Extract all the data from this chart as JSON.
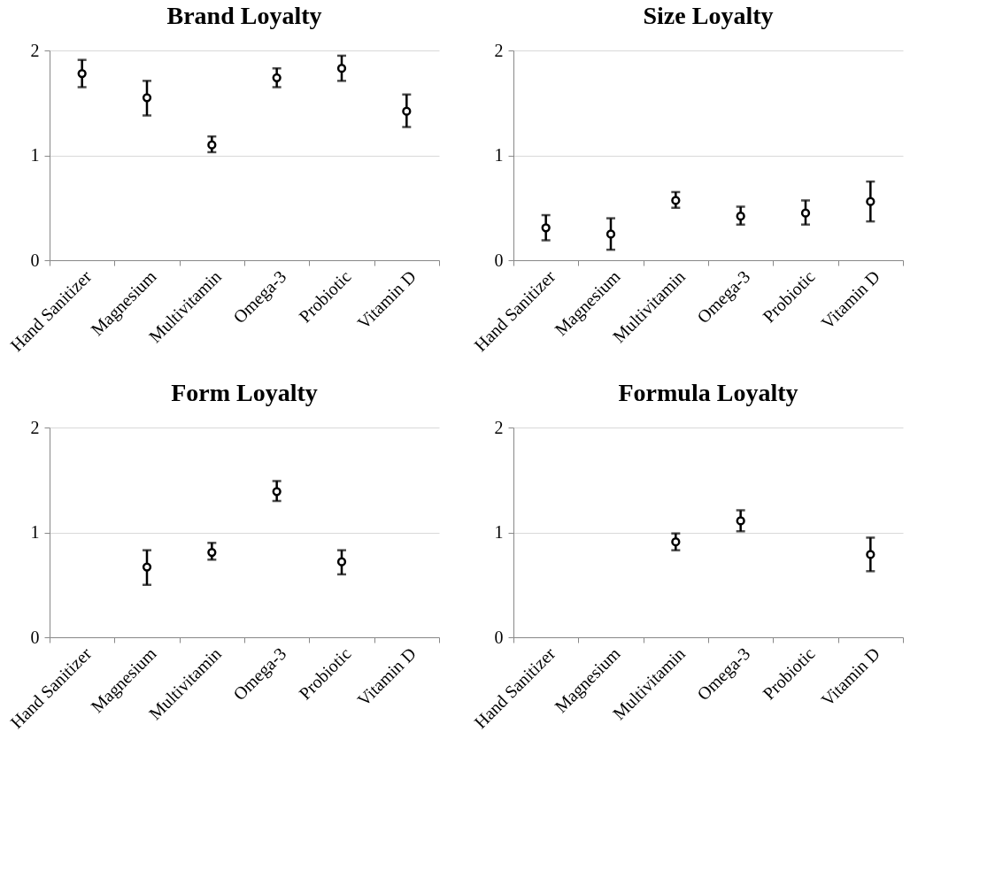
{
  "chart_data": [
    {
      "type": "scatter",
      "title": "Brand Loyalty",
      "categories": [
        "Hand Sanitizer",
        "Magnesium",
        "Multivitamin",
        "Omega-3",
        "Probiotic",
        "Vitamin D"
      ],
      "values": [
        1.78,
        1.55,
        1.1,
        1.74,
        1.83,
        1.42
      ],
      "errors": [
        [
          1.65,
          1.91
        ],
        [
          1.38,
          1.71
        ],
        [
          1.03,
          1.18
        ],
        [
          1.65,
          1.83
        ],
        [
          1.71,
          1.95
        ],
        [
          1.27,
          1.58
        ]
      ],
      "color": "#000000",
      "ylim": [
        0,
        2
      ],
      "yticks": [
        0,
        1,
        2
      ],
      "grid": "y",
      "marker": "circle"
    },
    {
      "type": "scatter",
      "title": "Size Loyalty",
      "categories": [
        "Hand Sanitizer",
        "Magnesium",
        "Multivitamin",
        "Omega-3",
        "Probiotic",
        "Vitamin D"
      ],
      "values": [
        0.31,
        0.25,
        0.57,
        0.42,
        0.45,
        0.56
      ],
      "errors": [
        [
          0.19,
          0.43
        ],
        [
          0.1,
          0.4
        ],
        [
          0.5,
          0.65
        ],
        [
          0.34,
          0.51
        ],
        [
          0.34,
          0.57
        ],
        [
          0.37,
          0.75
        ]
      ],
      "color": "#000000",
      "ylim": [
        0,
        2
      ],
      "yticks": [
        0,
        1,
        2
      ],
      "grid": "y",
      "marker": "circle"
    },
    {
      "type": "scatter",
      "title": "Form Loyalty",
      "categories": [
        "Hand Sanitizer",
        "Magnesium",
        "Multivitamin",
        "Omega-3",
        "Probiotic",
        "Vitamin D"
      ],
      "values": [
        null,
        0.67,
        0.81,
        1.39,
        0.72,
        null
      ],
      "errors": [
        null,
        [
          0.5,
          0.83
        ],
        [
          0.74,
          0.9
        ],
        [
          1.3,
          1.49
        ],
        [
          0.6,
          0.83
        ],
        null
      ],
      "color": "#000000",
      "ylim": [
        0,
        2
      ],
      "yticks": [
        0,
        1,
        2
      ],
      "grid": "y",
      "marker": "circle"
    },
    {
      "type": "scatter",
      "title": "Formula Loyalty",
      "categories": [
        "Hand Sanitizer",
        "Magnesium",
        "Multivitamin",
        "Omega-3",
        "Probiotic",
        "Vitamin D"
      ],
      "values": [
        null,
        null,
        0.91,
        1.11,
        null,
        0.79
      ],
      "errors": [
        null,
        null,
        [
          0.83,
          0.99
        ],
        [
          1.01,
          1.21
        ],
        null,
        [
          0.63,
          0.95
        ]
      ],
      "color": "#000000",
      "ylim": [
        0,
        2
      ],
      "yticks": [
        0,
        1,
        2
      ],
      "grid": "y",
      "marker": "circle"
    }
  ]
}
